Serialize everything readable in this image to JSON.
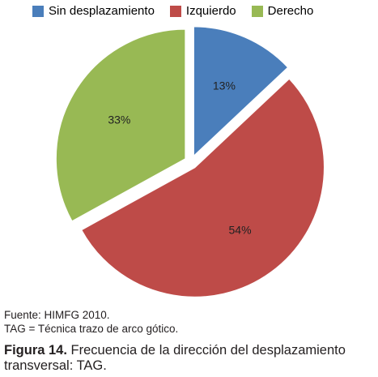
{
  "chart_data": {
    "type": "pie",
    "title": "",
    "legend_position": "top",
    "slices": [
      {
        "name": "Sin desplazamiento",
        "value": 13,
        "label": "13%",
        "color": "#4a7ebb"
      },
      {
        "name": "Izquierdo",
        "value": 54,
        "label": "54%",
        "color": "#be4b48"
      },
      {
        "name": "Derecho",
        "value": 33,
        "label": "33%",
        "color": "#98b954"
      }
    ]
  },
  "notes": {
    "source": "Fuente: HIMFG 2010.",
    "abbreviation": "TAG = Técnica trazo de arco gótico."
  },
  "caption": {
    "figure_label": "Figura 14.",
    "text": "Frecuencia de la dirección del desplazamiento transversal: TAG."
  }
}
